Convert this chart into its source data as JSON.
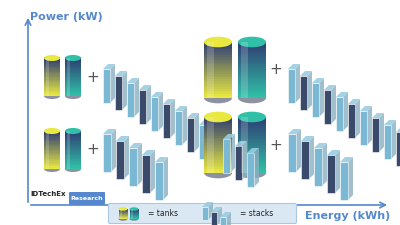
{
  "bg_color": "#ffffff",
  "axis_color": "#5588cc",
  "xlabel": "Energy (kWh)",
  "ylabel": "Power (kW)",
  "xlabel_fontsize": 8,
  "ylabel_fontsize": 8,
  "idtechex_text": "IDTechEx",
  "research_text": "Research",
  "research_bg": "#5588cc",
  "legend_text_tanks": "= tanks",
  "legend_text_stacks": "= stacks",
  "cyl_yellow": "#e8e840",
  "cyl_teal": "#30c0a8",
  "cyl_dark_blue": "#2e3d72",
  "cyl_mid": "#4a5a9a",
  "stack_front_light": "#6bb8d8",
  "stack_front_dark": "#3a4a6a",
  "stack_side": "#8ab8cc",
  "stack_top": "#7aaabb"
}
